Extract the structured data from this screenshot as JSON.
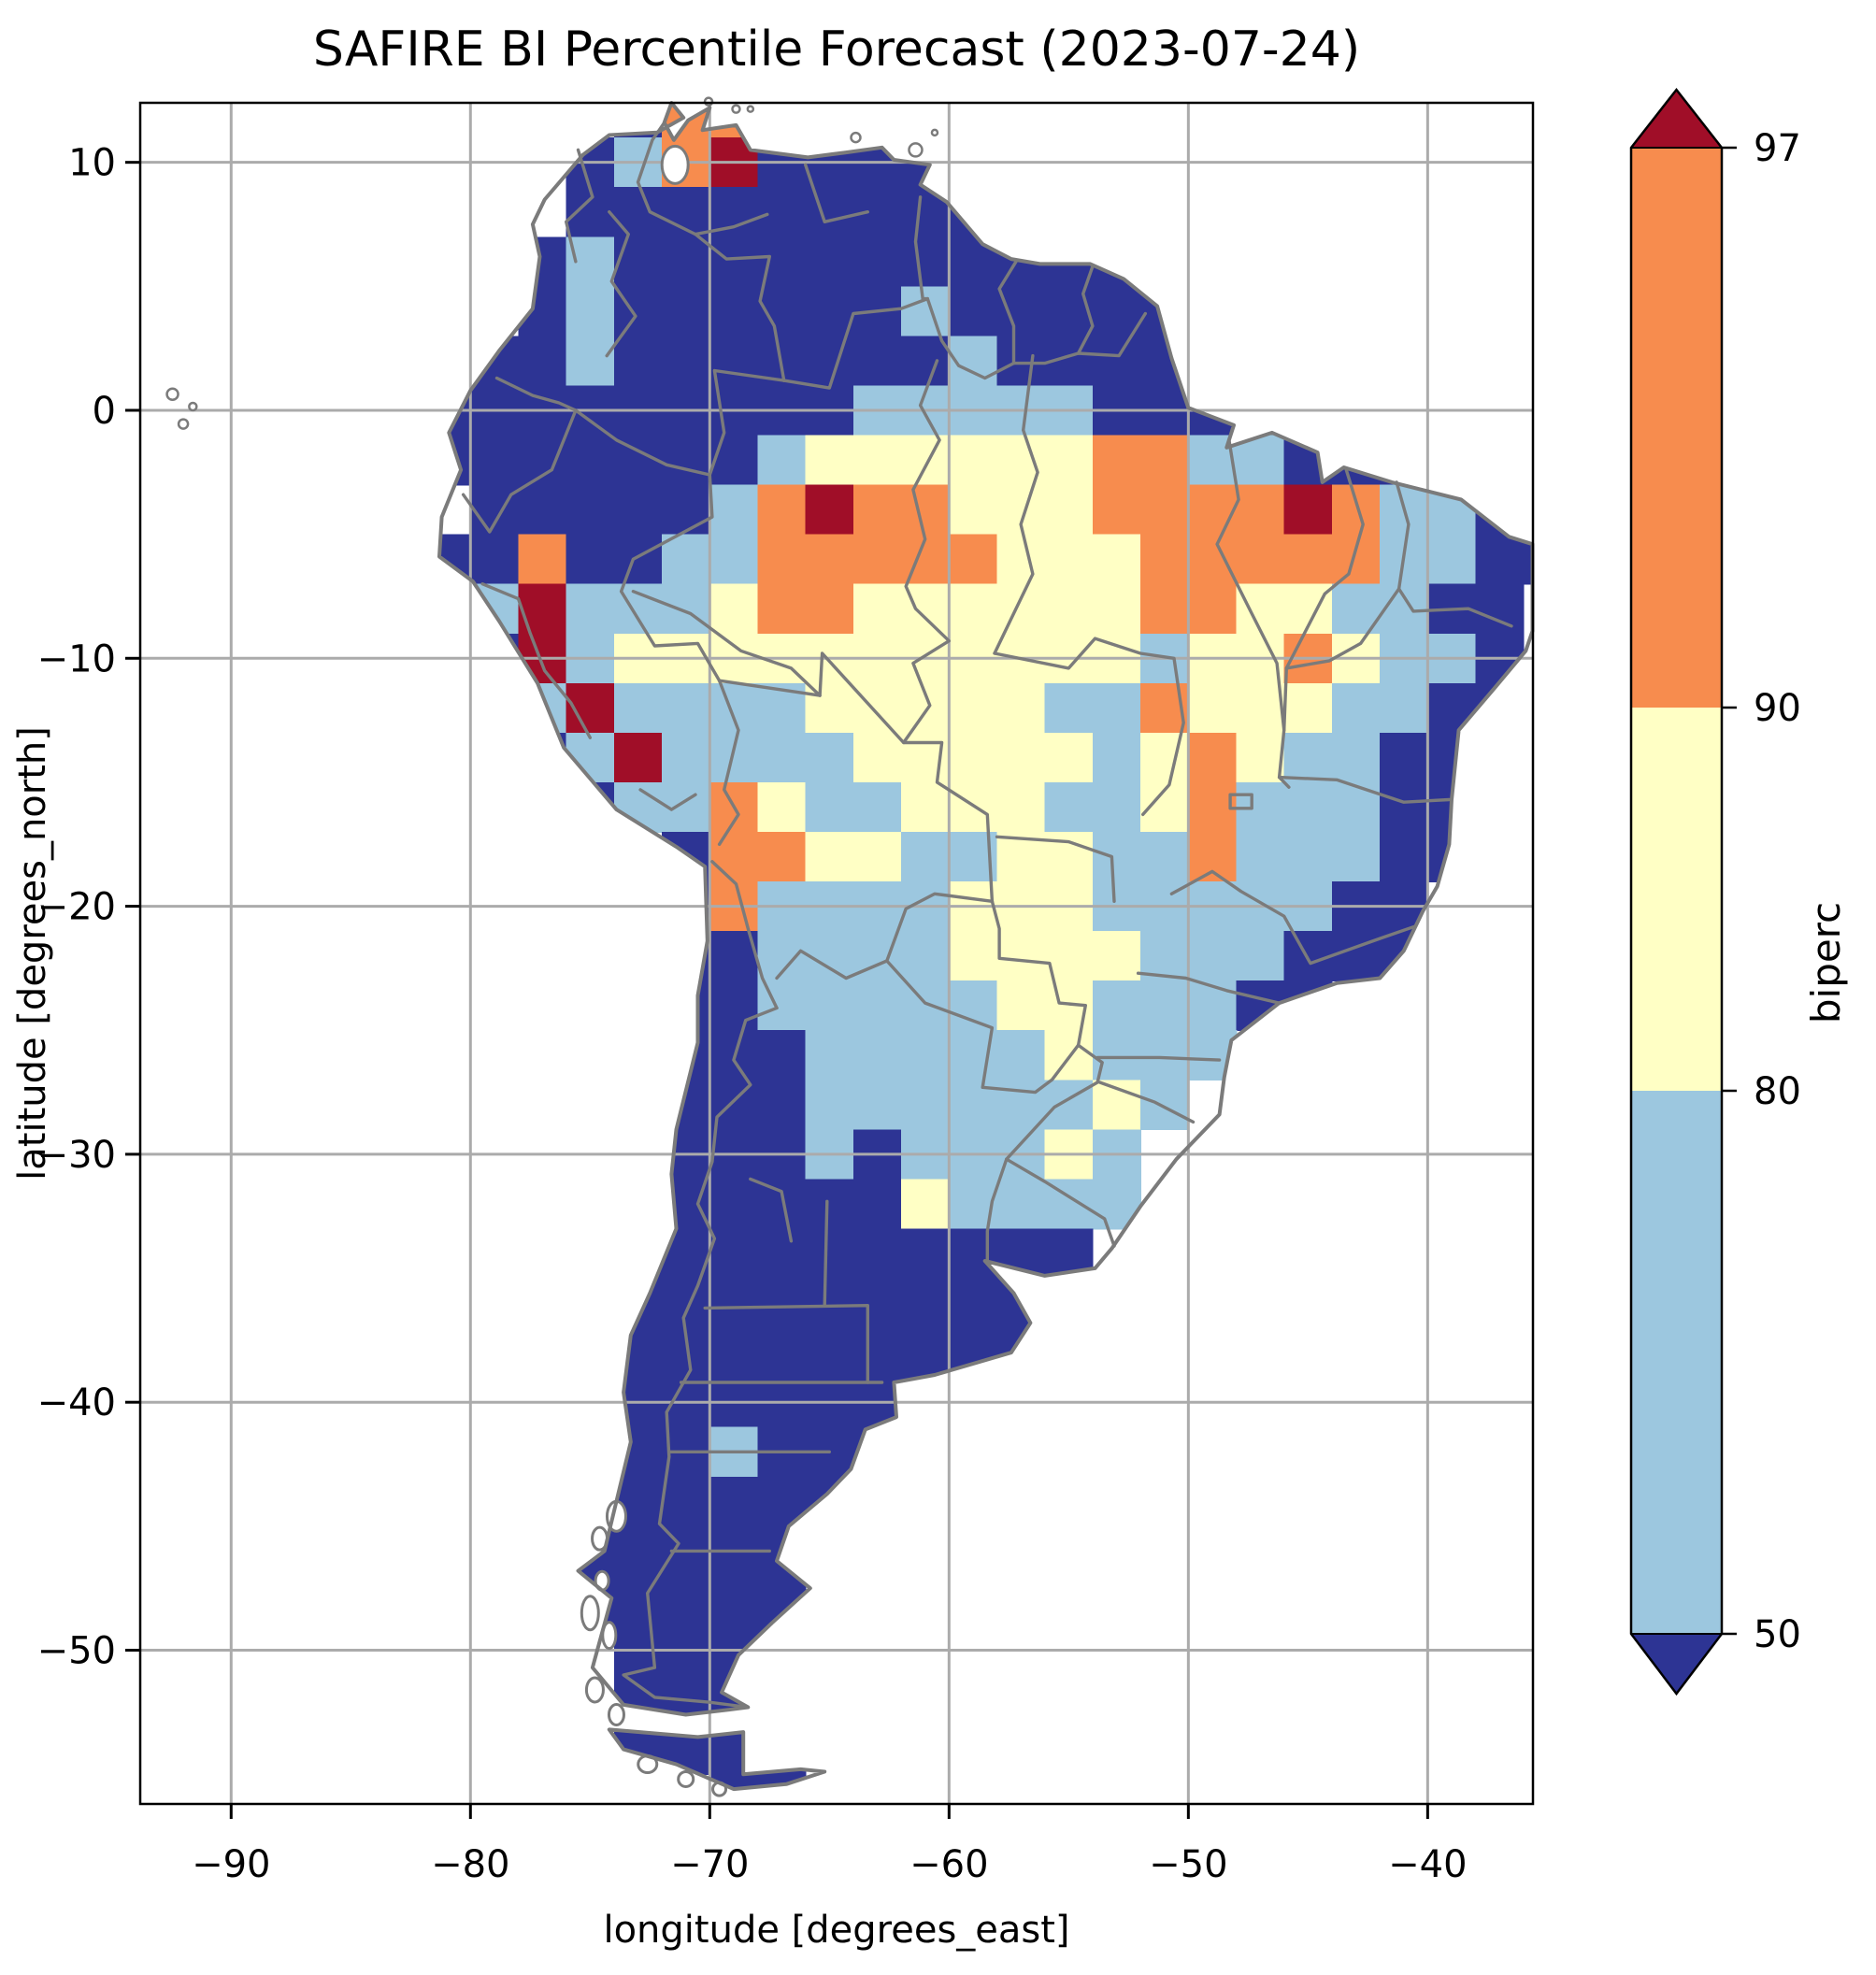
{
  "figure": {
    "title": "SAFIRE BI Percentile Forecast (2023-07-24)",
    "x_axis": {
      "label": "longitude [degrees_east]",
      "tick_labels": [
        "−90",
        "−80",
        "−70",
        "−60",
        "−50",
        "−40"
      ],
      "tick_values": [
        -90,
        -80,
        -70,
        -60,
        -50,
        -40
      ]
    },
    "y_axis": {
      "label": "latitude [degrees_north]",
      "tick_labels": [
        "10",
        "0",
        "−10",
        "−20",
        "−30",
        "−40",
        "−50"
      ],
      "tick_values": [
        10,
        0,
        -10,
        -20,
        -30,
        -40,
        -50
      ]
    },
    "colorbar": {
      "label": "biperc",
      "tick_labels": [
        "97",
        "90",
        "80",
        "50"
      ],
      "levels": [
        50,
        80,
        90,
        97
      ],
      "extend": "both"
    }
  },
  "chart_data": {
    "type": "heatmap",
    "title": "SAFIRE BI Percentile Forecast (2023-07-24)",
    "xlabel": "longitude [degrees_east]",
    "ylabel": "latitude [degrees_north]",
    "colorbar_label": "biperc",
    "region": "South America",
    "lon_range": [
      -93.8,
      -35.6
    ],
    "lat_range": [
      -56.2,
      12.4
    ],
    "grid_on": true,
    "levels": [
      50,
      80,
      90,
      97
    ],
    "native_resolution_deg_approx": 0.5,
    "encoded_resolution_deg": 2,
    "palette": {
      "0": "#2d3494",
      "1": "#9cc7df",
      "2": "#ffffc5",
      "3": "#f78c4e",
      "4": "#a00e28"
    },
    "class_meaning": {
      "0": "biperc < 50",
      "1": "biperc 50–80",
      "2": "biperc 80–90",
      "3": "biperc 90–97",
      "4": "biperc > 97",
      ".": "ocean / outside domain"
    },
    "colors": {
      "ocean": "#ffffff",
      "border_gray": "#7b7b7b",
      "gridline_gray": "#ababab",
      "frame_black": "#000000"
    },
    "grid": {
      "lon_origin": -94,
      "lat_origin": 13,
      "cell_deg": 2,
      "note": "rows run north to south; each char is one 2-degree cell keyed by class_meaning",
      "rows": [
        "..........033.................",
        ".........01340000.............",
        ".........000000000............",
        "........0100000000000.........",
        "........01000000100000........",
        "......0001000000010000........",
        "......00000000011111000.......",
        "......000000012222223311000...",
        ".......0000013433222333343110.",
        "......003001133333222333331100",
        ".......1411123322222233221100.",
        ".......0412222222222212232110.",
        ".......0141111222221132221100.",
        "........01411112222212321100..",
        ".........0113211222112311100..",
        "...........03322112211311100..",
        "...........0311112221111100...",
        "...........0011112222111000...",
        "...........00111112211100.....",
        "...........000111112111.......",
        "...........00011111121........",
        "...........0001011121.........",
        "...........0000021111.........",
        "..........0000000000..........",
        "..........000000000...........",
        "..........000000000...........",
        "..........00000000............",
        "..........0010000.............",
        "..........000000..............",
        ".........0000000..............",
        ".........00000................",
        "..........0000................",
        "..........0000................",
        "..........0000................",
        "............00................"
      ]
    }
  }
}
